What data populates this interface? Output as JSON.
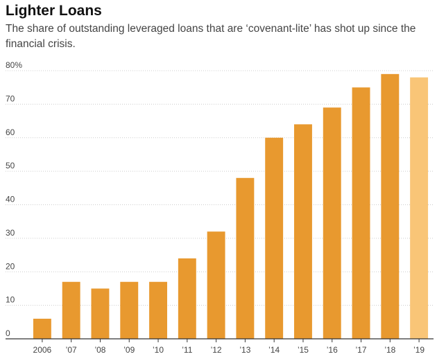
{
  "title": "Lighter Loans",
  "subtitle": "The share of outstanding leveraged loans that are ‘covenant-lite’ has shot up since the financial crisis.",
  "colors": {
    "bar": "#E8992F",
    "bar_estimate": "#F9C577",
    "grid": "#cccccc",
    "baseline": "#333333"
  },
  "chart_data": {
    "type": "bar",
    "title": "Lighter Loans",
    "subtitle": "The share of outstanding leveraged loans that are ‘covenant-lite’ has shot up since the financial crisis.",
    "xlabel": "",
    "ylabel": "",
    "categories": [
      "2006",
      "’07",
      "’08",
      "’09",
      "’10",
      "’11",
      "’12",
      "’13",
      "’14",
      "’15",
      "’16",
      "’17",
      "’18",
      "’19"
    ],
    "values": [
      6,
      17,
      15,
      17,
      17,
      24,
      32,
      48,
      60,
      64,
      69,
      75,
      79,
      78
    ],
    "highlighted_last_bar": true,
    "ylim": [
      0,
      80
    ],
    "yticks": [
      0,
      10,
      20,
      30,
      40,
      50,
      60,
      70,
      80
    ],
    "ytick_labels": [
      "0",
      "10",
      "20",
      "30",
      "40",
      "50",
      "60",
      "70",
      "80%"
    ],
    "grid": true
  }
}
